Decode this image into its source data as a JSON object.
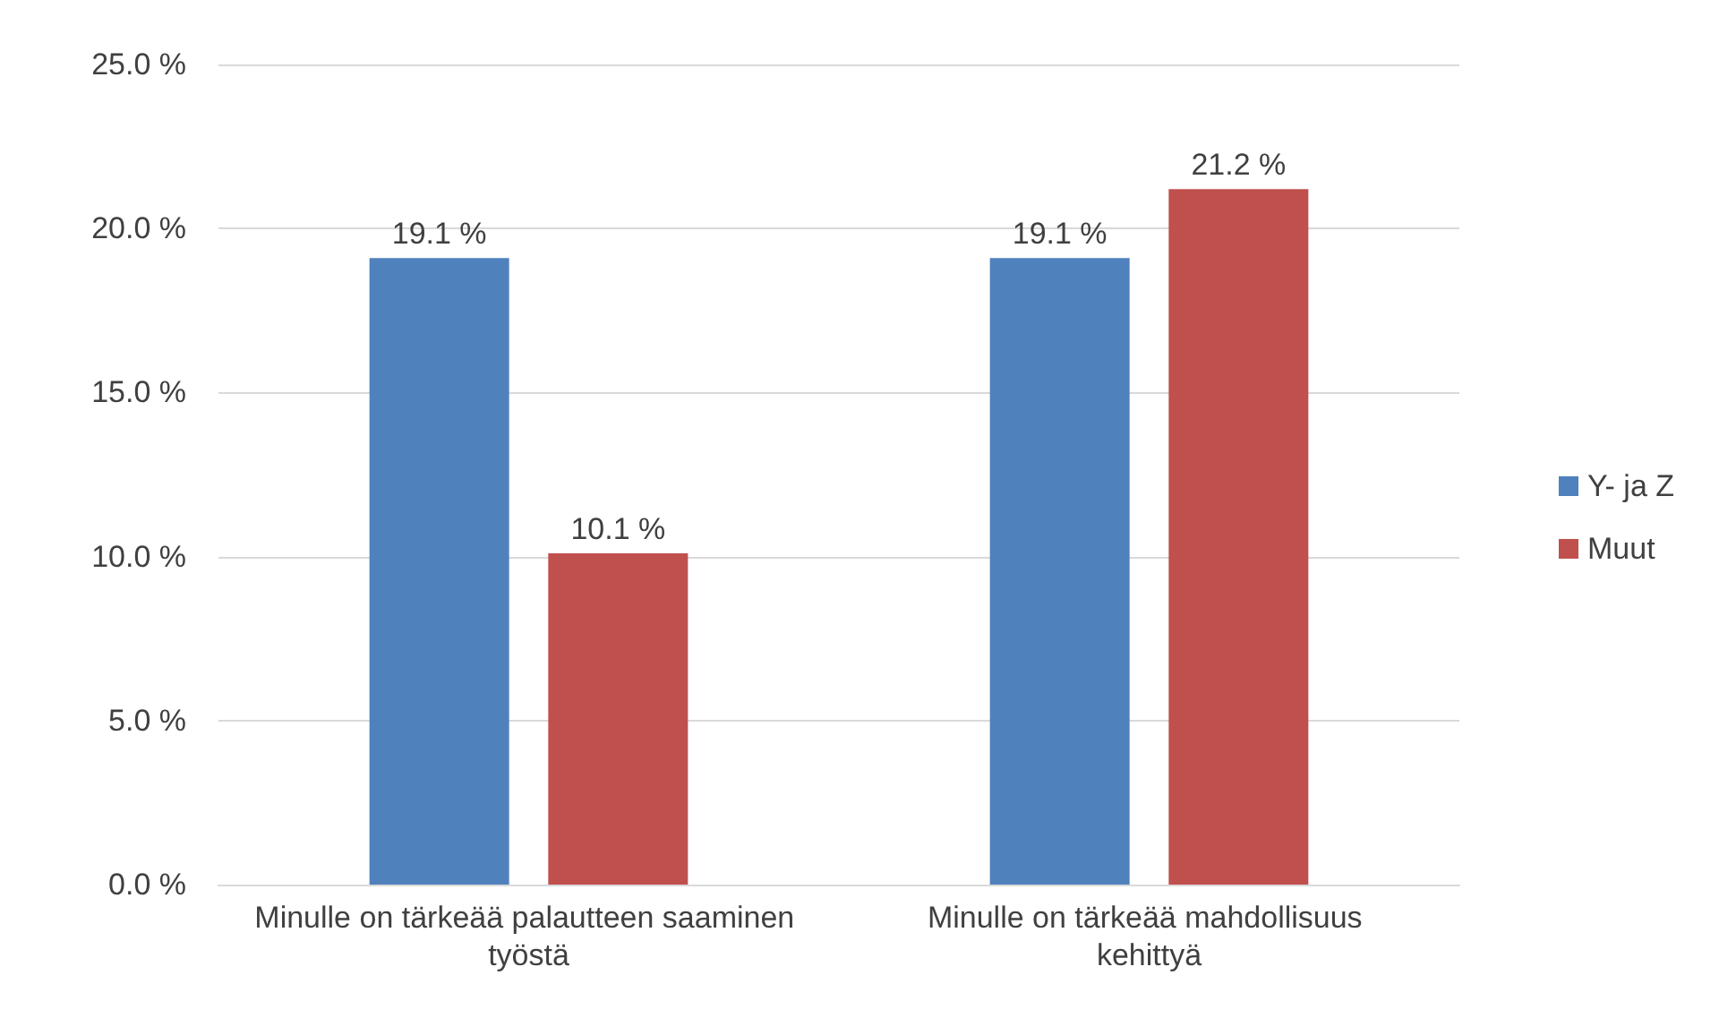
{
  "chart_data": {
    "type": "bar",
    "categories": [
      "Minulle on tärkeää palautteen saaminen työstä",
      "Minulle on tärkeää mahdollisuus kehittyä"
    ],
    "series": [
      {
        "name": "Y- ja Z",
        "color": "#4f81bd",
        "values": [
          19.1,
          19.1
        ],
        "value_labels": [
          "19.1 %",
          "19.1 %"
        ]
      },
      {
        "name": "Muut",
        "color": "#c0504d",
        "values": [
          10.1,
          21.2
        ],
        "value_labels": [
          "10.1 %",
          "21.2 %"
        ]
      }
    ],
    "ylim": [
      0,
      25
    ],
    "yticks": [
      {
        "value": 0,
        "label": "0.0 %"
      },
      {
        "value": 5,
        "label": "5.0 %"
      },
      {
        "value": 10,
        "label": "10.0 %"
      },
      {
        "value": 15,
        "label": "15.0 %"
      },
      {
        "value": 20,
        "label": "20.0 %"
      },
      {
        "value": 25,
        "label": "25.0 %"
      }
    ],
    "grid": "y",
    "legend": "right"
  }
}
